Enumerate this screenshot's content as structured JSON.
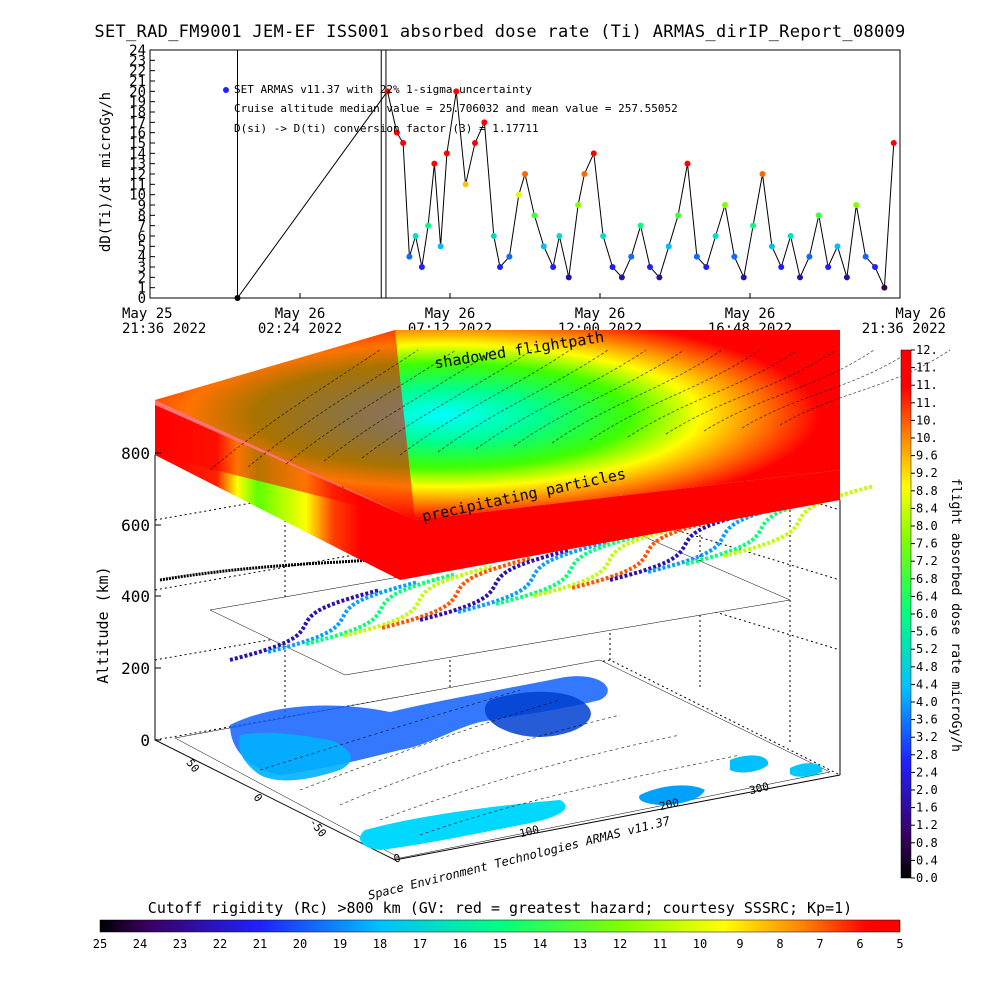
{
  "title": "SET_RAD_FM9001  JEM-EF ISS001 absorbed dose rate (Ti) ARMAS_dirIP_Report_08009",
  "colors": {
    "background": "#ffffff",
    "axes": "#000000",
    "hazard_red": "#ff0000",
    "low_cyan": "#00ffff",
    "ocean_blue": "#1060ff",
    "jet": [
      "#000000",
      "#3a0060",
      "#2020ff",
      "#00c0ff",
      "#00ff80",
      "#80ff00",
      "#ffff00",
      "#ff8000",
      "#ff0000"
    ]
  },
  "chart_data": [
    {
      "type": "scatter",
      "ylabel": "dD(Ti)/dt microGy/h",
      "ylim": [
        0,
        24
      ],
      "yticks": [
        "0",
        "1",
        "2",
        "3",
        "4",
        "5",
        "6",
        "7",
        "8",
        "9",
        "10",
        "11",
        "12",
        "13",
        "14",
        "15",
        "16",
        "17",
        "18",
        "19",
        "20",
        "21",
        "22",
        "23",
        "24"
      ],
      "xtick_labels": [
        {
          "line1": "May 25",
          "line2": "21:36 2022"
        },
        {
          "line1": "May 26",
          "line2": "02:24 2022"
        },
        {
          "line1": "May 26",
          "line2": "07:12 2022"
        },
        {
          "line1": "May 26",
          "line2": "12:00 2022"
        },
        {
          "line1": "May 26",
          "line2": "16:48 2022"
        },
        {
          "line1": "May 26",
          "line2": "21:36 2022"
        }
      ],
      "x_unit": "hours since May 25 21:36 2022",
      "xlim": [
        0,
        24
      ],
      "annotations": [
        "SET ARMAS v11.37 with 22% 1-sigma uncertainty",
        "Cruise altitude median value = 25.706032 and mean value = 257.55052",
        "D(si) -> D(ti) conversion factor (3) = 1.17711"
      ],
      "points": [
        {
          "t": 2.8,
          "v": 0
        },
        {
          "t": 7.6,
          "v": 20
        },
        {
          "t": 7.9,
          "v": 16
        },
        {
          "t": 8.1,
          "v": 15
        },
        {
          "t": 8.3,
          "v": 4
        },
        {
          "t": 8.5,
          "v": 6
        },
        {
          "t": 8.7,
          "v": 3
        },
        {
          "t": 8.9,
          "v": 7
        },
        {
          "t": 9.1,
          "v": 13
        },
        {
          "t": 9.3,
          "v": 5
        },
        {
          "t": 9.5,
          "v": 14
        },
        {
          "t": 9.8,
          "v": 20
        },
        {
          "t": 10.1,
          "v": 11
        },
        {
          "t": 10.4,
          "v": 15
        },
        {
          "t": 10.7,
          "v": 17
        },
        {
          "t": 11.0,
          "v": 6
        },
        {
          "t": 11.2,
          "v": 3
        },
        {
          "t": 11.5,
          "v": 4
        },
        {
          "t": 11.8,
          "v": 10
        },
        {
          "t": 12.0,
          "v": 12
        },
        {
          "t": 12.3,
          "v": 8
        },
        {
          "t": 12.6,
          "v": 5
        },
        {
          "t": 12.9,
          "v": 3
        },
        {
          "t": 13.1,
          "v": 6
        },
        {
          "t": 13.4,
          "v": 2
        },
        {
          "t": 13.7,
          "v": 9
        },
        {
          "t": 13.9,
          "v": 12
        },
        {
          "t": 14.2,
          "v": 14
        },
        {
          "t": 14.5,
          "v": 6
        },
        {
          "t": 14.8,
          "v": 3
        },
        {
          "t": 15.1,
          "v": 2
        },
        {
          "t": 15.4,
          "v": 4
        },
        {
          "t": 15.7,
          "v": 7
        },
        {
          "t": 16.0,
          "v": 3
        },
        {
          "t": 16.3,
          "v": 2
        },
        {
          "t": 16.6,
          "v": 5
        },
        {
          "t": 16.9,
          "v": 8
        },
        {
          "t": 17.2,
          "v": 13
        },
        {
          "t": 17.5,
          "v": 4
        },
        {
          "t": 17.8,
          "v": 3
        },
        {
          "t": 18.1,
          "v": 6
        },
        {
          "t": 18.4,
          "v": 9
        },
        {
          "t": 18.7,
          "v": 4
        },
        {
          "t": 19.0,
          "v": 2
        },
        {
          "t": 19.3,
          "v": 7
        },
        {
          "t": 19.6,
          "v": 12
        },
        {
          "t": 19.9,
          "v": 5
        },
        {
          "t": 20.2,
          "v": 3
        },
        {
          "t": 20.5,
          "v": 6
        },
        {
          "t": 20.8,
          "v": 2
        },
        {
          "t": 21.1,
          "v": 4
        },
        {
          "t": 21.4,
          "v": 8
        },
        {
          "t": 21.7,
          "v": 3
        },
        {
          "t": 22.0,
          "v": 5
        },
        {
          "t": 22.3,
          "v": 2
        },
        {
          "t": 22.6,
          "v": 9
        },
        {
          "t": 22.9,
          "v": 4
        },
        {
          "t": 23.2,
          "v": 3
        },
        {
          "t": 23.5,
          "v": 1
        },
        {
          "t": 23.8,
          "v": 15
        }
      ]
    },
    {
      "type": "heatmap",
      "ylabel": "Altitude (km)",
      "zticks": [
        "0",
        "200",
        "400",
        "600",
        "800"
      ],
      "lat_ticks": [
        "50",
        "0",
        "-50"
      ],
      "lon_ticks": [
        "0",
        "100",
        "200",
        "300"
      ],
      "annotations": [
        "shadowed flightpath",
        "precipitating particles"
      ],
      "footer": "Space Environment Technologies ARMAS v11.37"
    },
    {
      "type": "heatmap",
      "name": "colorbar",
      "label": "flight absorbed dose rate microGy/h",
      "ticks": [
        "0.0",
        "0.4",
        "0.8",
        "1.2",
        "1.6",
        "2.0",
        "2.4",
        "2.8",
        "3.2",
        "3.6",
        "4.0",
        "4.4",
        "4.8",
        "5.2",
        "5.6",
        "6.0",
        "6.4",
        "6.8",
        "7.2",
        "7.6",
        "8.0",
        "8.4",
        "8.8",
        "9.2",
        "9.6",
        "10.",
        "10.",
        "11.",
        "11.",
        "11.",
        "12."
      ]
    },
    {
      "type": "heatmap",
      "name": "cutoff-rigidity-bar",
      "label": "Cutoff rigidity (Rc) >800 km (GV: red = greatest hazard; courtesy SSSRC; Kp=1)",
      "ticks": [
        "25",
        "24",
        "23",
        "22",
        "21",
        "20",
        "19",
        "18",
        "17",
        "16",
        "15",
        "14",
        "13",
        "12",
        "11",
        "10",
        "9",
        "8",
        "7",
        "6",
        "5"
      ]
    }
  ]
}
